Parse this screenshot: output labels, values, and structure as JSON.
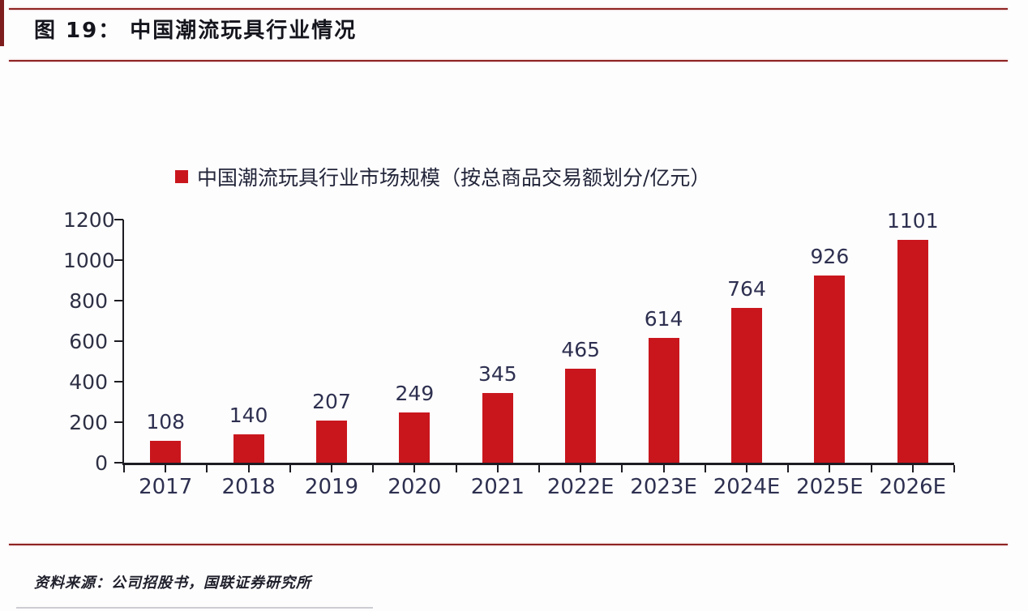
{
  "figure": {
    "title": "图 19： 中国潮流玩具行业情况",
    "source": "资料来源：公司招股书，国联证券研究所"
  },
  "chart_data": {
    "type": "bar",
    "title": "",
    "legend": [
      "中国潮流玩具行业市场规模（按总商品交易额划分/亿元）"
    ],
    "legend_position": "top",
    "categories": [
      "2017",
      "2018",
      "2019",
      "2020",
      "2021",
      "2022E",
      "2023E",
      "2024E",
      "2025E",
      "2026E"
    ],
    "values": [
      108,
      140,
      207,
      249,
      345,
      465,
      614,
      764,
      926,
      1101
    ],
    "unit": "亿元",
    "xlabel": "",
    "ylabel": "",
    "ylim": [
      0,
      1200
    ],
    "yticks": [
      0,
      200,
      400,
      600,
      800,
      1000,
      1200
    ],
    "grid": false,
    "data_labels": true,
    "bar_color": "#c9161d"
  },
  "colors": {
    "accent_red": "#c9161d",
    "rule_red": "#8e2423",
    "axis": "#1c1c22",
    "text_dark": "#2e3044",
    "background": "#fdfdfe"
  }
}
